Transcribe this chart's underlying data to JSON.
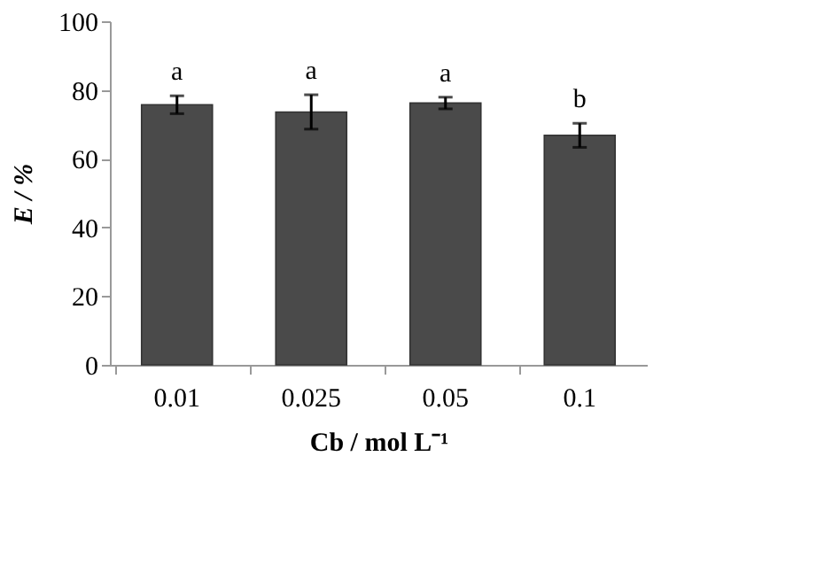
{
  "chart_data": {
    "type": "bar",
    "xlabel": "Cb / mol L⁻¹",
    "ylabel": "E / %",
    "categories": [
      "0.01",
      "0.025",
      "0.05",
      "0.1"
    ],
    "values": [
      75.7,
      73.6,
      76.2,
      66.8
    ],
    "errors": [
      2.6,
      5,
      1.7,
      3.5
    ],
    "color": "#4a4a4a",
    "ylim": [
      0,
      100
    ],
    "yticks": [
      0,
      20,
      40,
      60,
      80,
      100
    ],
    "grid": false,
    "annotations": [
      "a",
      "a",
      "a",
      "b"
    ]
  }
}
